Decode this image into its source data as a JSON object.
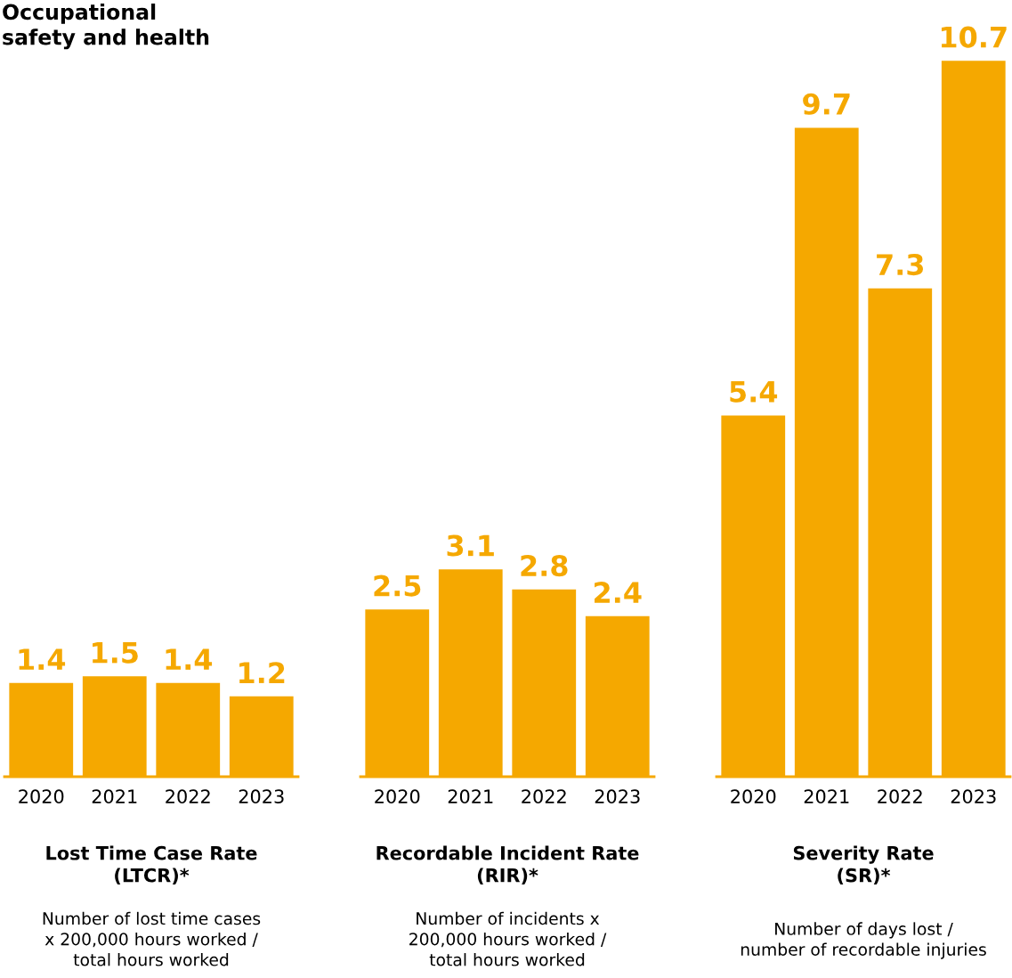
{
  "chart_data": [
    {
      "type": "bar",
      "title": "Occupational\nsafety and health",
      "categories": [
        "2020",
        "2021",
        "2022",
        "2023"
      ],
      "values": [
        1.4,
        1.5,
        1.4,
        1.2
      ],
      "color": "#f5a800",
      "data_labels": true,
      "tick_labels": "x",
      "grid": false,
      "legend": false,
      "xlabel": "Lost Time Case Rate\n(LTCR)*",
      "annotations": [
        "Number of lost time cases\nx 200,000 hours worked /\ntotal hours worked"
      ]
    },
    {
      "type": "bar",
      "categories": [
        "2020",
        "2021",
        "2022",
        "2023"
      ],
      "values": [
        2.5,
        3.1,
        2.8,
        2.4
      ],
      "color": "#f5a800",
      "data_labels": true,
      "tick_labels": "x",
      "grid": false,
      "legend": false,
      "xlabel": "Recordable Incident Rate\n(RIR)*",
      "annotations": [
        "Number of incidents x\n200,000 hours worked /\ntotal hours worked"
      ]
    },
    {
      "type": "bar",
      "categories": [
        "2020",
        "2021",
        "2022",
        "2023"
      ],
      "values": [
        5.4,
        9.7,
        7.3,
        10.7
      ],
      "color": "#f5a800",
      "data_labels": true,
      "tick_labels": "x",
      "grid": false,
      "legend": false,
      "xlabel": "Severity Rate\n(SR)*",
      "annotations": [
        "Number of days lost /\nnumber of recordable injuries"
      ]
    }
  ]
}
